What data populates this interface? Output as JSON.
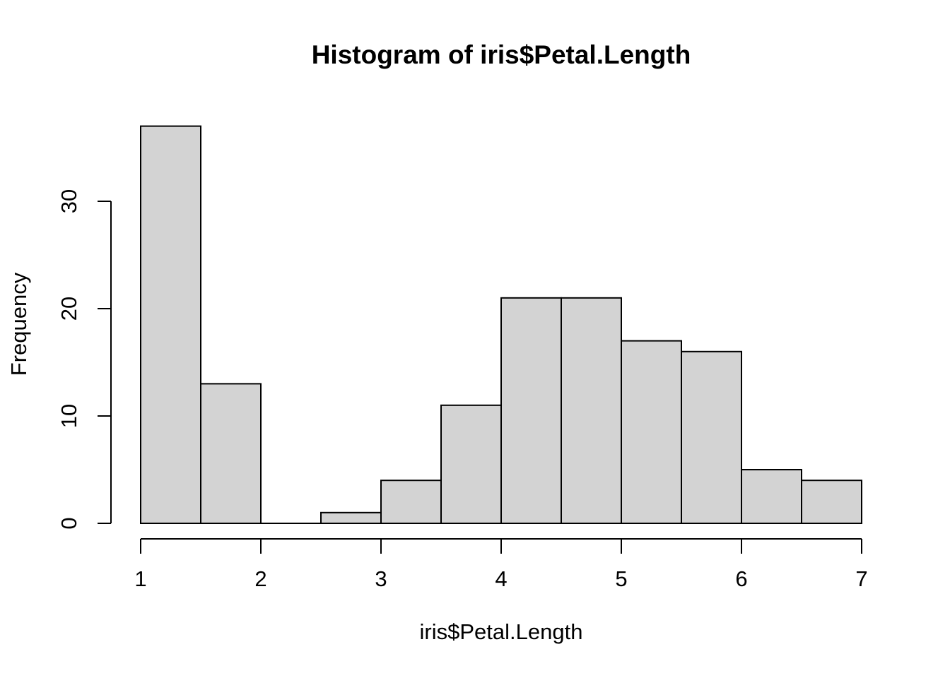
{
  "colors": {
    "background": "#ffffff",
    "bar_fill": "#d3d3d3",
    "bar_border": "#000000",
    "axis": "#000000",
    "text": "#000000"
  },
  "chart_data": {
    "type": "bar",
    "subtype": "histogram",
    "title": "Histogram of iris$Petal.Length",
    "xlabel": "iris$Petal.Length",
    "ylabel": "Frequency",
    "breaks": [
      1,
      1.5,
      2,
      2.5,
      3,
      3.5,
      4,
      4.5,
      5,
      5.5,
      6,
      6.5,
      7
    ],
    "counts": [
      37,
      13,
      0,
      1,
      4,
      11,
      21,
      21,
      17,
      16,
      5,
      4
    ],
    "categories": [
      "1-1.5",
      "1.5-2",
      "2-2.5",
      "2.5-3",
      "3-3.5",
      "3.5-4",
      "4-4.5",
      "4.5-5",
      "5-5.5",
      "5.5-6",
      "6-6.5",
      "6.5-7"
    ],
    "xlim": [
      1,
      7
    ],
    "ylim": [
      0,
      37
    ],
    "x_ticks": [
      1,
      2,
      3,
      4,
      5,
      6,
      7
    ],
    "y_ticks": [
      0,
      10,
      20,
      30
    ],
    "grid": false,
    "legend": null
  }
}
